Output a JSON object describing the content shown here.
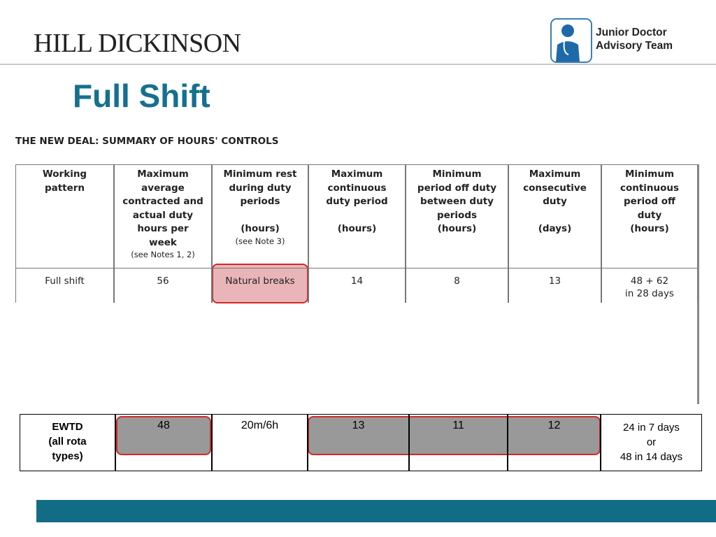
{
  "header": {
    "brand": "HILL DICKINSON",
    "logo_lines": [
      "Junior Doctor",
      "Advisory Team"
    ]
  },
  "title": "Full Shift",
  "table_title": "THE NEW DEAL: SUMMARY OF HOURS' CONTROLS",
  "table": {
    "headers": [
      {
        "lines": [
          "Working",
          "pattern"
        ]
      },
      {
        "lines": [
          "Maximum",
          "average",
          "contracted and",
          "actual duty",
          "hours per",
          "week"
        ],
        "note": "(see Notes 1, 2)"
      },
      {
        "lines": [
          "Minimum rest",
          "during duty",
          "periods",
          "",
          "(hours)"
        ],
        "note": "(see Note 3)"
      },
      {
        "lines": [
          "Maximum",
          "continuous",
          "duty period",
          "",
          "(hours)"
        ]
      },
      {
        "lines": [
          "Minimum",
          "period off duty",
          "between duty",
          "periods",
          "(hours)"
        ]
      },
      {
        "lines": [
          "Maximum",
          "consecutive",
          "duty",
          "",
          "(days)"
        ]
      },
      {
        "lines": [
          "Minimum",
          "continuous",
          "period off",
          "duty",
          "(hours)"
        ]
      }
    ],
    "rows": [
      [
        [
          "Full shift"
        ],
        [
          "56"
        ],
        [
          "Natural breaks"
        ],
        [
          "14"
        ],
        [
          "8"
        ],
        [
          "13"
        ],
        [
          "48 + 62",
          "in 28 days"
        ]
      ]
    ]
  },
  "ewtd": {
    "rows": [
      [
        [
          "EWTD",
          "(all rota",
          "types)"
        ],
        [
          "48"
        ],
        [
          "20m/6h"
        ],
        [
          "13"
        ],
        [
          "11"
        ],
        [
          "12"
        ],
        [
          "24 in 7 days",
          "or",
          "48 in 14 days"
        ]
      ]
    ]
  }
}
